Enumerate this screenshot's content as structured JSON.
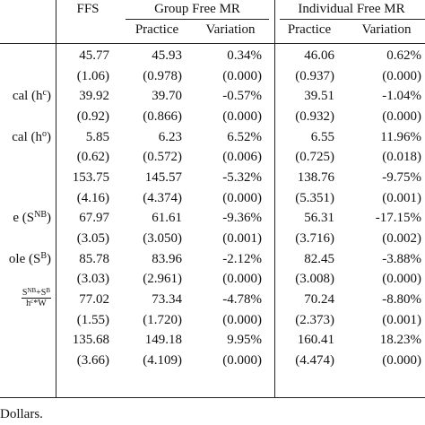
{
  "table": {
    "header": {
      "groups": [
        "FFS",
        "Group Free MR",
        "Individual Free MR"
      ],
      "subheaders": [
        "Practice",
        "Variation",
        "Practice",
        "Variation"
      ]
    },
    "rows": [
      {
        "cells": [
          "45.77",
          "45.93",
          "0.34%",
          "46.06",
          "0.62%"
        ]
      },
      {
        "cells": [
          "(1.06)",
          "(0.978)",
          "(0.000)",
          "(0.937)",
          "(0.000)"
        ]
      },
      {
        "label": [
          "cal (h",
          "c",
          ")"
        ],
        "cells": [
          "39.92",
          "39.70",
          "-0.57%",
          "39.51",
          "-1.04%"
        ]
      },
      {
        "cells": [
          "(0.92)",
          "(0.866)",
          "(0.000)",
          "(0.932)",
          "(0.000)"
        ]
      },
      {
        "label": [
          "cal (h",
          "o",
          ")"
        ],
        "cells": [
          "5.85",
          "6.23",
          "6.52%",
          "6.55",
          "11.96%"
        ]
      },
      {
        "cells": [
          "(0.62)",
          "(0.572)",
          "(0.006)",
          "(0.725)",
          "(0.018)"
        ]
      },
      {
        "cells": [
          "153.75",
          "145.57",
          "-5.32%",
          "138.76",
          "-9.75%"
        ]
      },
      {
        "cells": [
          "(4.16)",
          "(4.374)",
          "(0.000)",
          "(5.351)",
          "(0.001)"
        ]
      },
      {
        "label": [
          "e (S",
          "NB",
          ")"
        ],
        "cells": [
          "67.97",
          "61.61",
          "-9.36%",
          "56.31",
          "-17.15%"
        ]
      },
      {
        "cells": [
          "(3.05)",
          "(3.050)",
          "(0.001)",
          "(3.716)",
          "(0.002)"
        ]
      },
      {
        "label": [
          "ole (S",
          "B",
          ")"
        ],
        "cells": [
          "85.78",
          "83.96",
          "-2.12%",
          "82.45",
          "-3.88%"
        ]
      },
      {
        "cells": [
          "(3.03)",
          "(2.961)",
          "(0.000)",
          "(3.008)",
          "(0.000)"
        ]
      },
      {
        "fraction": {
          "num": [
            "S",
            "NB",
            "+S",
            "B"
          ],
          "den": [
            "h",
            "c",
            "*W"
          ]
        },
        "cells": [
          "77.02",
          "73.34",
          "-4.78%",
          "70.24",
          "-8.80%"
        ]
      },
      {
        "cells": [
          "(1.55)",
          "(1.720)",
          "(0.000)",
          "(2.373)",
          "(0.001)"
        ]
      },
      {
        "cells": [
          "135.68",
          "149.18",
          "9.95%",
          "160.41",
          "18.23%"
        ]
      },
      {
        "cells": [
          "(3.66)",
          "(4.109)",
          "(0.000)",
          "(4.474)",
          "(0.000)"
        ]
      }
    ],
    "footnote": "Dollars."
  }
}
